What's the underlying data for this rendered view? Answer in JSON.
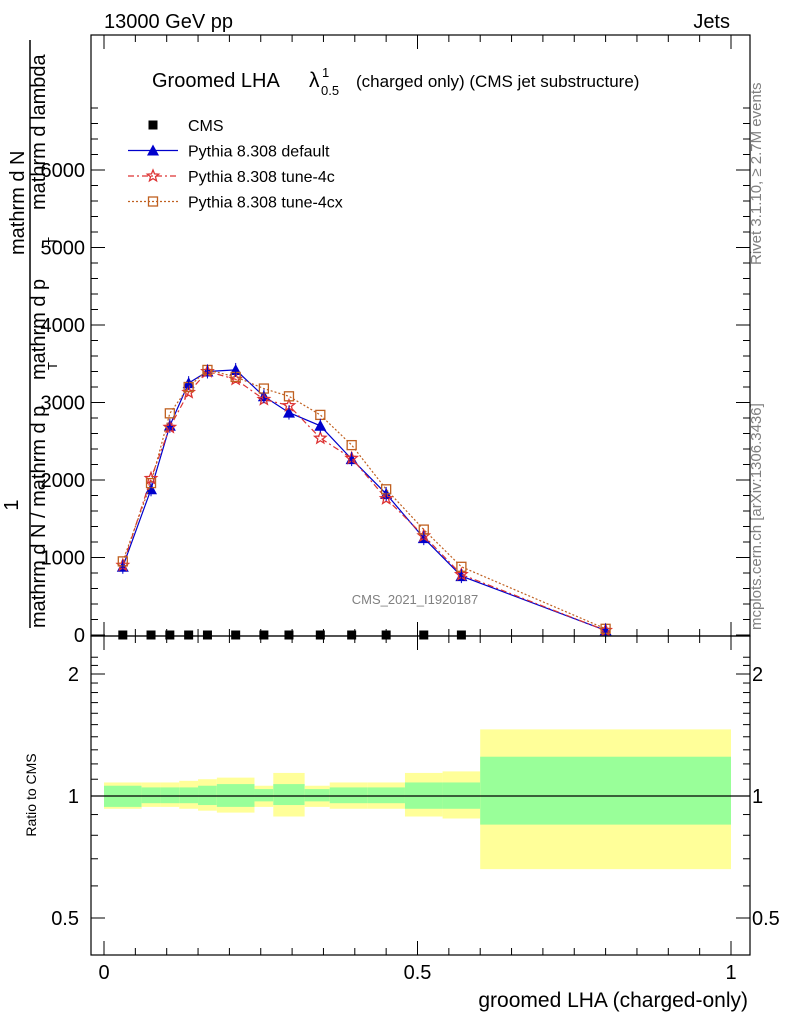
{
  "header": {
    "left": "13000 GeV pp",
    "right": "Jets"
  },
  "title": {
    "main": "Groomed LHA",
    "symbol": "λ",
    "sup": "1",
    "sub": "0.5",
    "rest": "(charged only) (CMS jet substructure)"
  },
  "side_labels": {
    "rivet": "Rivet 3.1.10, ≥ 2.7M events",
    "mcplots": "mcplots.cern.ch [arXiv:1306.3436]"
  },
  "watermark": "CMS_2021_I1920187",
  "y_axis_label": {
    "numerator_one": "1",
    "numerator_parts": [
      "mathrm d N",
      "mathrm d p",
      "mathrm d lambda"
    ],
    "denominator_parts": [
      "mathrm d N /",
      "mathrm d p",
      "mathrm d lambda"
    ],
    "frac_top": "mathrm d",
    "frac_top2": "N",
    "line1": "mathrm d",
    "line2": "N",
    "line3": "mathrm d p",
    "sub_t": "T",
    "line4": "mathrm d lambda",
    "den1": "mathrm d N / mathrm d p",
    "den_sub": "T"
  },
  "ratio_axis_label": "Ratio to CMS",
  "x_axis_label": "groomed LHA (charged-only)",
  "legend": [
    {
      "label": "CMS",
      "style": "data"
    },
    {
      "label": "Pythia 8.308 default",
      "style": "default"
    },
    {
      "label": "Pythia 8.308 tune-4c",
      "style": "tune4c"
    },
    {
      "label": "Pythia 8.308 tune-4cx",
      "style": "tune4cx"
    }
  ],
  "colors": {
    "default": "#0000cc",
    "tune4c": "#dd3333",
    "tune4cx": "#c06020",
    "band_inner": "#99ff99",
    "band_outer": "#ffff99"
  },
  "chart_data": {
    "type": "line",
    "xlim": [
      0,
      1
    ],
    "main_ylim": [
      0,
      7000
    ],
    "main_yticks": [
      0,
      1000,
      2000,
      3000,
      4000,
      5000,
      6000
    ],
    "main_ytick_labels": [
      "0",
      "1000",
      "2000",
      "3000",
      "4000",
      "5000",
      "6000"
    ],
    "ratio_ylim": [
      0.4,
      2.3
    ],
    "ratio_yticks": [
      0.5,
      1,
      2
    ],
    "ratio_ytick_labels": [
      "0.5",
      "1",
      "2"
    ],
    "xticks": [
      0,
      0.5,
      1
    ],
    "xtick_labels": [
      "0",
      "0.5",
      "1"
    ],
    "bin_edges": [
      0,
      0.06,
      0.09,
      0.12,
      0.15,
      0.18,
      0.24,
      0.27,
      0.32,
      0.36,
      0.42,
      0.48,
      0.54,
      0.6,
      1.0
    ],
    "series": [
      {
        "name": "CMS",
        "key": "data",
        "x": [
          0.03,
          0.075,
          0.105,
          0.135,
          0.165,
          0.21,
          0.255,
          0.295,
          0.345,
          0.395,
          0.45,
          0.51,
          0.57,
          0.8
        ],
        "y": [
          0,
          0,
          0,
          0,
          0,
          0,
          0,
          0,
          0,
          0,
          0,
          0,
          0,
          0
        ]
      },
      {
        "name": "Pythia 8.308 default",
        "key": "default",
        "x": [
          0.03,
          0.075,
          0.105,
          0.135,
          0.165,
          0.21,
          0.255,
          0.295,
          0.345,
          0.395,
          0.45,
          0.51,
          0.57,
          0.8
        ],
        "y": [
          880,
          1880,
          2700,
          3250,
          3400,
          3420,
          3080,
          2870,
          2700,
          2270,
          1820,
          1250,
          760,
          60
        ]
      },
      {
        "name": "Pythia 8.308 tune-4c",
        "key": "tune4c",
        "x": [
          0.03,
          0.075,
          0.105,
          0.135,
          0.165,
          0.21,
          0.255,
          0.295,
          0.345,
          0.395,
          0.45,
          0.51,
          0.57,
          0.8
        ],
        "y": [
          900,
          2020,
          2680,
          3130,
          3400,
          3300,
          3040,
          2960,
          2540,
          2280,
          1760,
          1280,
          780,
          60
        ]
      },
      {
        "name": "Pythia 8.308 tune-4cx",
        "key": "tune4cx",
        "x": [
          0.03,
          0.075,
          0.105,
          0.135,
          0.165,
          0.21,
          0.255,
          0.295,
          0.345,
          0.395,
          0.45,
          0.51,
          0.57,
          0.8
        ],
        "y": [
          950,
          1960,
          2860,
          3200,
          3420,
          3330,
          3180,
          3080,
          2840,
          2450,
          1880,
          1360,
          880,
          80
        ]
      }
    ],
    "ratio_bands": {
      "inner": [
        [
          0.94,
          1.06
        ],
        [
          0.96,
          1.05
        ],
        [
          0.96,
          1.05
        ],
        [
          0.96,
          1.05
        ],
        [
          0.95,
          1.06
        ],
        [
          0.94,
          1.07
        ],
        [
          0.97,
          1.04
        ],
        [
          0.95,
          1.07
        ],
        [
          0.97,
          1.04
        ],
        [
          0.96,
          1.05
        ],
        [
          0.96,
          1.05
        ],
        [
          0.93,
          1.08
        ],
        [
          0.93,
          1.08
        ],
        [
          0.85,
          1.25
        ]
      ],
      "outer": [
        [
          0.93,
          1.08
        ],
        [
          0.94,
          1.08
        ],
        [
          0.94,
          1.08
        ],
        [
          0.93,
          1.09
        ],
        [
          0.92,
          1.1
        ],
        [
          0.91,
          1.11
        ],
        [
          0.94,
          1.06
        ],
        [
          0.89,
          1.14
        ],
        [
          0.94,
          1.06
        ],
        [
          0.93,
          1.08
        ],
        [
          0.93,
          1.08
        ],
        [
          0.89,
          1.14
        ],
        [
          0.88,
          1.15
        ],
        [
          0.66,
          1.46
        ]
      ]
    }
  }
}
